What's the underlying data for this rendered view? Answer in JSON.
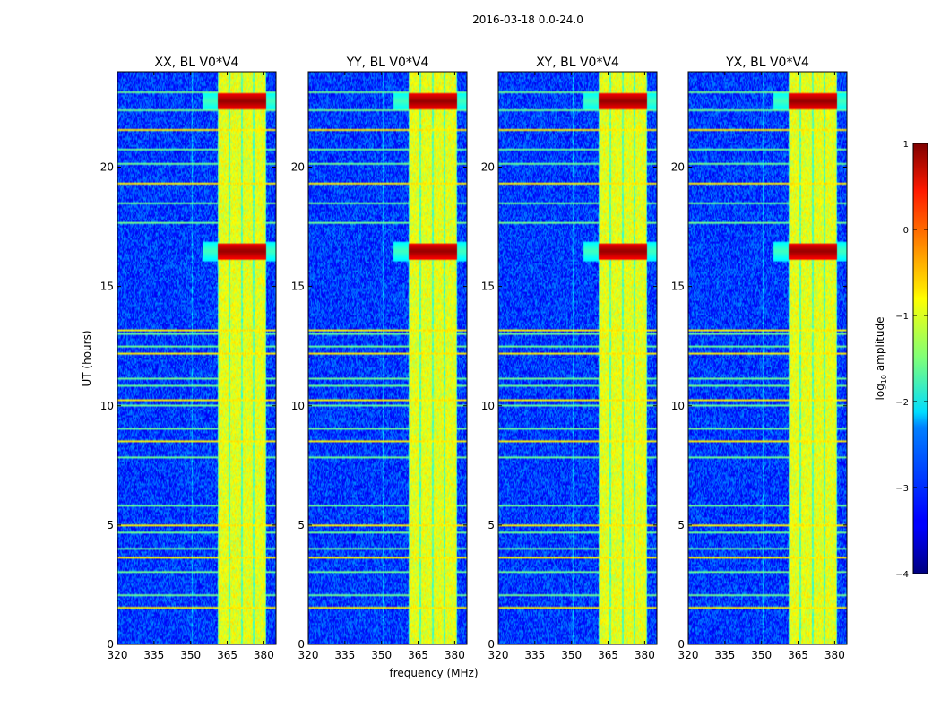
{
  "chart_data": {
    "type": "heatmap",
    "suptitle": "2016-03-18 0.0-24.0",
    "xlabel": "frequency (MHz)",
    "ylabel": "UT (hours)",
    "xlim": [
      320,
      385
    ],
    "ylim": [
      0,
      24
    ],
    "xticks": [
      320,
      335,
      350,
      365,
      380
    ],
    "xtick_labels": [
      "320",
      "335",
      "350",
      "365",
      "380"
    ],
    "yticks": [
      0,
      5,
      10,
      15,
      20
    ],
    "ytick_labels": [
      "0",
      "5",
      "10",
      "15",
      "20"
    ],
    "colormap": "jet",
    "colorbar": {
      "label_main": "log",
      "label_sub": "10",
      "label_rest": " amplitude",
      "range": [
        -4,
        1
      ],
      "ticks": [
        1,
        0,
        -1,
        -2,
        -3,
        -4
      ],
      "tick_labels": [
        "1",
        "0",
        "−1",
        "−2",
        "−3",
        "−4"
      ]
    },
    "panels": [
      {
        "title": "XX, BL V0*V4",
        "polarization": "XX"
      },
      {
        "title": "YY, BL V0*V4",
        "polarization": "YY"
      },
      {
        "title": "XY, BL V0*V4",
        "polarization": "XY"
      },
      {
        "title": "YX, BL V0*V4",
        "polarization": "YX"
      }
    ],
    "features": {
      "background_level": -3.1,
      "band_freq_range_mhz": [
        361,
        381
      ],
      "band_level": -1.0,
      "band_channel_centers_mhz": [
        362.5,
        367.5,
        372.5,
        377.5
      ],
      "strong_events_ut": [
        16.5,
        22.8
      ],
      "strong_event_level": 0.9,
      "rfi_lines_ut": [
        1.5,
        2.0,
        3.0,
        3.6,
        4.0,
        4.7,
        5.0,
        5.8,
        7.8,
        8.5,
        9.0,
        10.0,
        10.2,
        10.8,
        11.1,
        12.2,
        12.5,
        13.0,
        13.2,
        17.7,
        18.5,
        19.3,
        20.2,
        20.8,
        21.6,
        22.4,
        23.2
      ]
    }
  }
}
